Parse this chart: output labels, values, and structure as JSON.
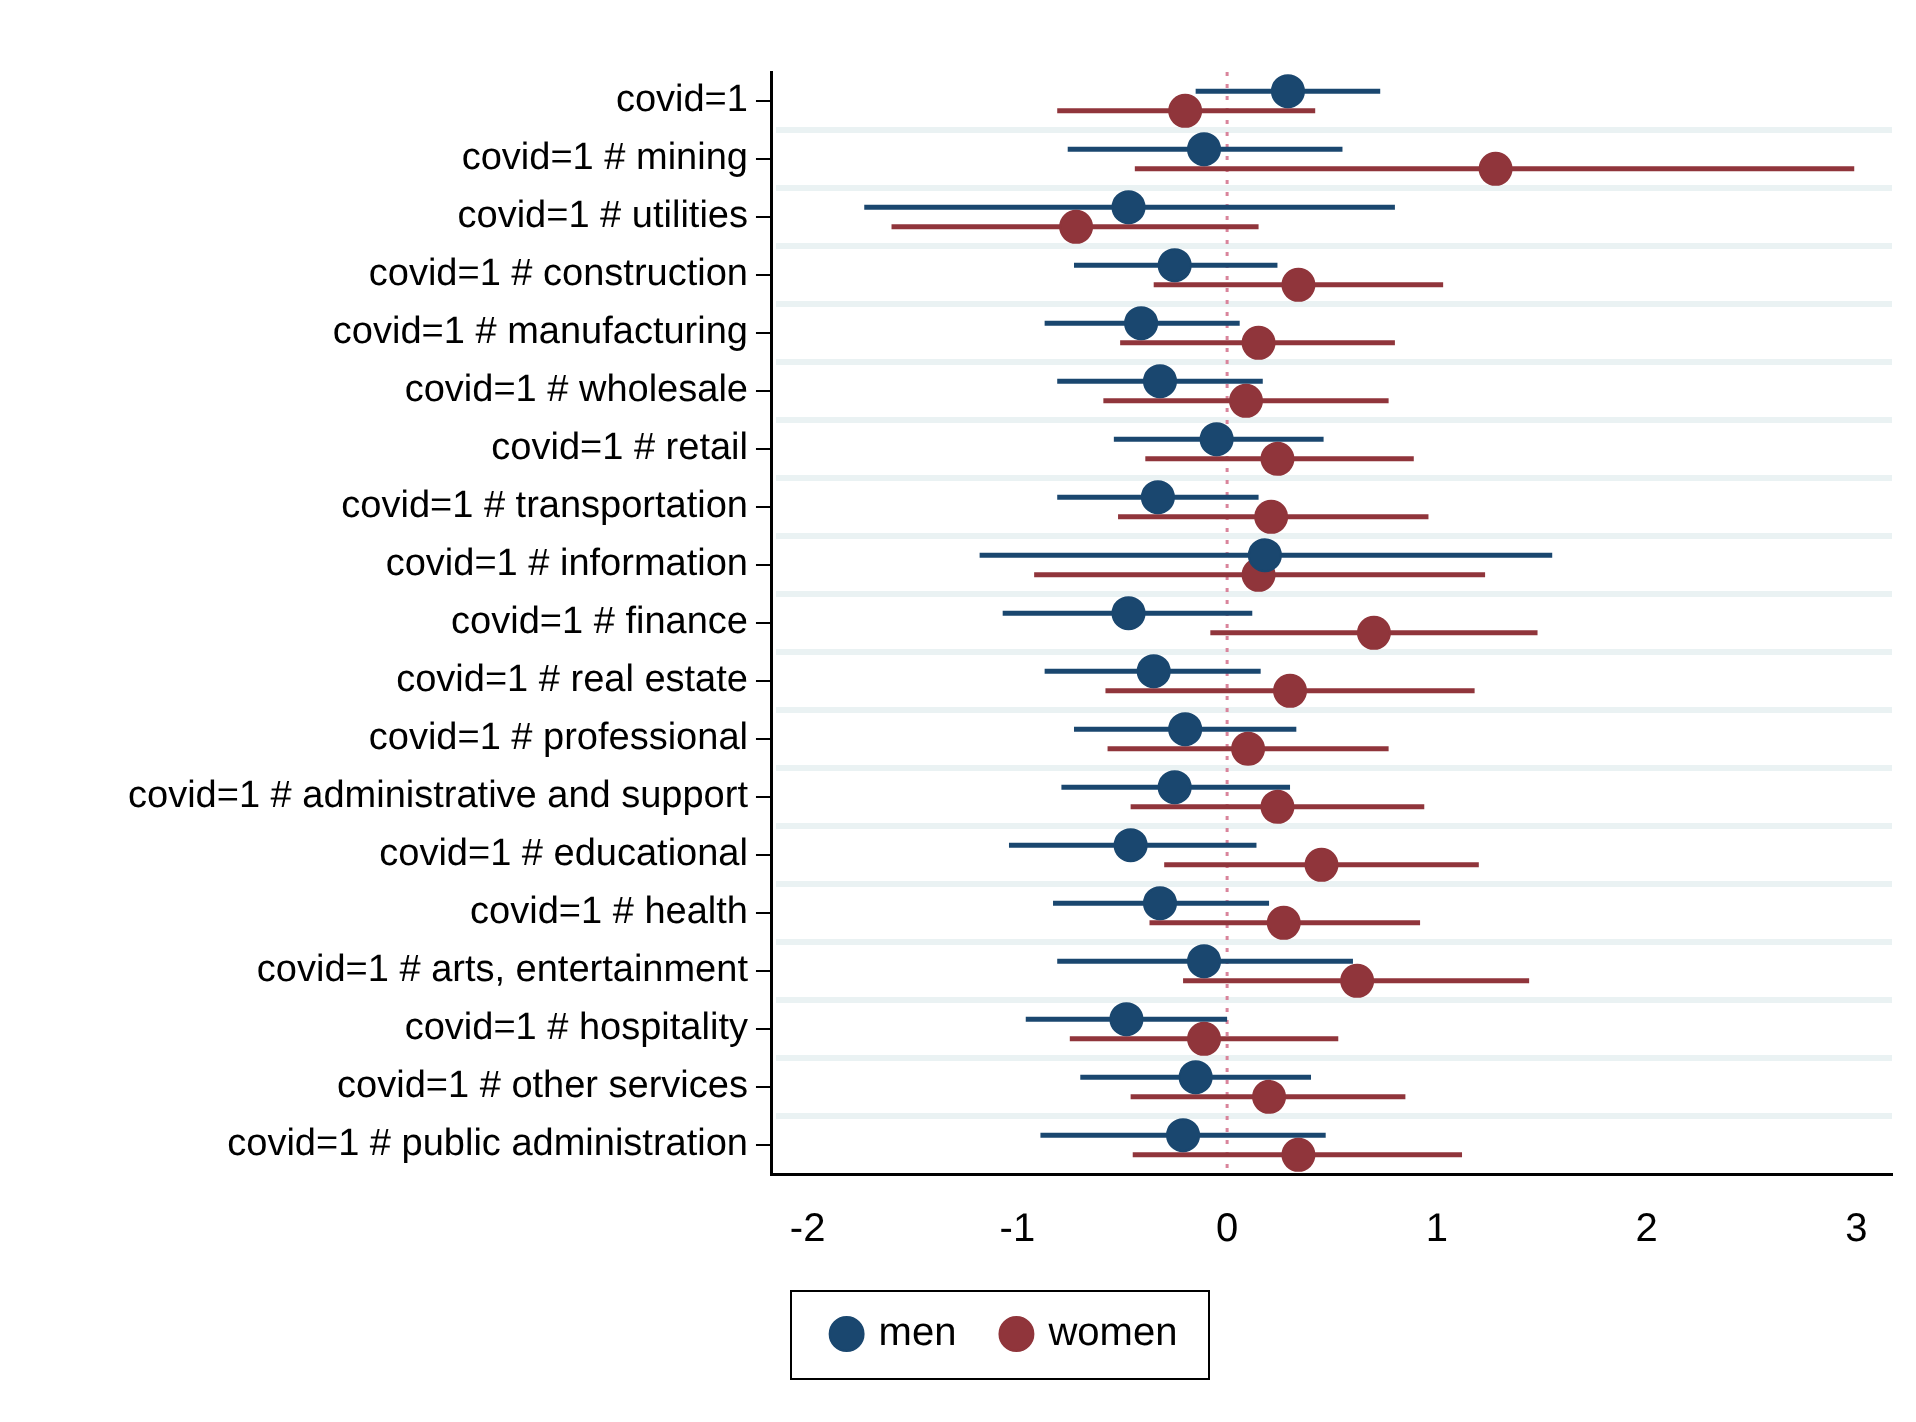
{
  "chart_data": {
    "type": "scatter",
    "orientation": "horizontal",
    "categories": [
      "covid=1",
      "covid=1 # mining",
      "covid=1 # utilities",
      "covid=1 # construction",
      "covid=1 # manufacturing",
      "covid=1 # wholesale",
      "covid=1 # retail",
      "covid=1 # transportation",
      "covid=1 # information",
      "covid=1 # finance",
      "covid=1 # real estate",
      "covid=1 # professional",
      "covid=1 # administrative and support",
      "covid=1 # educational",
      "covid=1 # health",
      "covid=1 # arts, entertainment",
      "covid=1 # hospitality",
      "covid=1 # other services",
      "covid=1 # public administration"
    ],
    "series": [
      {
        "name": "men",
        "color": "#1a476f",
        "values": [
          0.29,
          -0.11,
          -0.47,
          -0.25,
          -0.41,
          -0.32,
          -0.05,
          -0.33,
          0.18,
          -0.47,
          -0.35,
          -0.2,
          -0.25,
          -0.46,
          -0.32,
          -0.11,
          -0.48,
          -0.15,
          -0.21
        ],
        "errors": [
          [
            -0.15,
            0.73
          ],
          [
            -0.76,
            0.55
          ],
          [
            -1.73,
            0.8
          ],
          [
            -0.73,
            0.24
          ],
          [
            -0.87,
            0.06
          ],
          [
            -0.81,
            0.17
          ],
          [
            -0.54,
            0.46
          ],
          [
            -0.81,
            0.15
          ],
          [
            -1.18,
            1.55
          ],
          [
            -1.07,
            0.12
          ],
          [
            -0.87,
            0.16
          ],
          [
            -0.73,
            0.33
          ],
          [
            -0.79,
            0.3
          ],
          [
            -1.04,
            0.14
          ],
          [
            -0.83,
            0.2
          ],
          [
            -0.81,
            0.6
          ],
          [
            -0.96,
            0.0
          ],
          [
            -0.7,
            0.4
          ],
          [
            -0.89,
            0.47
          ]
        ]
      },
      {
        "name": "women",
        "color": "#90353b",
        "values": [
          -0.2,
          1.28,
          -0.72,
          0.34,
          0.15,
          0.09,
          0.24,
          0.21,
          0.15,
          0.7,
          0.3,
          0.1,
          0.24,
          0.45,
          0.27,
          0.62,
          -0.11,
          0.2,
          0.34
        ],
        "errors": [
          [
            -0.81,
            0.42
          ],
          [
            -0.44,
            2.99
          ],
          [
            -1.6,
            0.15
          ],
          [
            -0.35,
            1.03
          ],
          [
            -0.51,
            0.8
          ],
          [
            -0.59,
            0.77
          ],
          [
            -0.39,
            0.89
          ],
          [
            -0.52,
            0.96
          ],
          [
            -0.92,
            1.23
          ],
          [
            -0.08,
            1.48
          ],
          [
            -0.58,
            1.18
          ],
          [
            -0.57,
            0.77
          ],
          [
            -0.46,
            0.94
          ],
          [
            -0.3,
            1.2
          ],
          [
            -0.37,
            0.92
          ],
          [
            -0.21,
            1.44
          ],
          [
            -0.75,
            0.53
          ],
          [
            -0.46,
            0.85
          ],
          [
            -0.45,
            1.12
          ]
        ]
      }
    ],
    "xlim": [
      -2.17,
      3.17
    ],
    "xticks": [
      -2,
      -1,
      0,
      1,
      2,
      3
    ],
    "grid": "y",
    "marker": "circle",
    "legend": "bottom",
    "ref_lines": [
      {
        "axis": "x",
        "value": 0,
        "color": "#d9849b",
        "line_style": "dotted"
      }
    ]
  }
}
